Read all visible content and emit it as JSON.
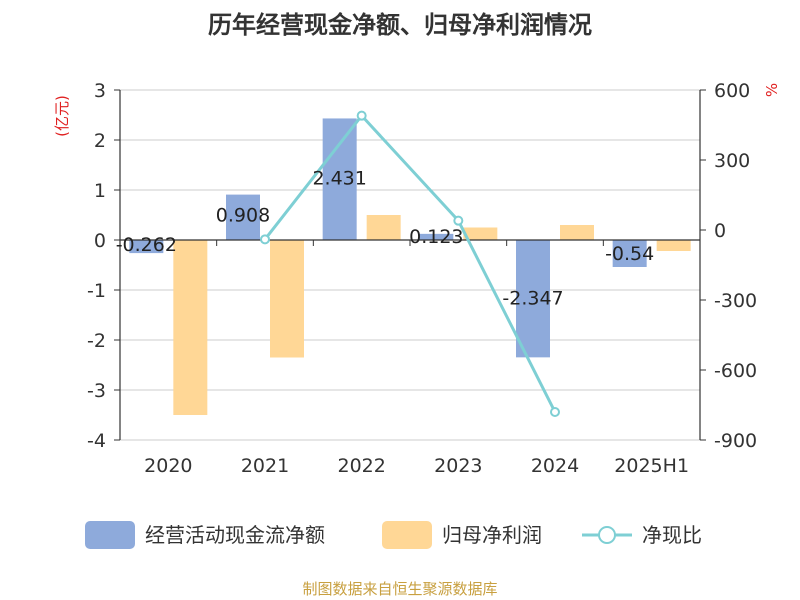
{
  "title": "历年经营现金净额、归母净利润情况",
  "left_unit": "(亿元)",
  "right_unit": "%",
  "source": "制图数据来自恒生聚源数据库",
  "legend": [
    {
      "label": "经营活动现金流净额",
      "color": "#8eaadb",
      "kind": "bar"
    },
    {
      "label": "归母净利润",
      "color": "#ffd796",
      "kind": "bar"
    },
    {
      "label": "净现比",
      "color": "#7ecfd4",
      "kind": "line"
    }
  ],
  "chart_data": {
    "type": "bar",
    "categories": [
      "2020",
      "2021",
      "2022",
      "2023",
      "2024",
      "2025H1"
    ],
    "left_axis": {
      "ylim": [
        -4,
        3
      ],
      "ticks": [
        3,
        2,
        1,
        0,
        -1,
        -2,
        -3,
        -4
      ]
    },
    "right_axis": {
      "ylim": [
        -900,
        600
      ],
      "ticks": [
        600,
        300,
        0,
        -300,
        -600,
        -900
      ]
    },
    "series": [
      {
        "name": "经营活动现金流净额",
        "axis": "left",
        "type": "bar",
        "color": "#8eaadb",
        "values": [
          -0.262,
          0.908,
          2.431,
          0.123,
          -2.347,
          -0.54
        ],
        "labels": [
          "-0.262",
          "0.908",
          "2.431",
          "0.123",
          "-2.347",
          "-0.54"
        ]
      },
      {
        "name": "归母净利润",
        "axis": "left",
        "type": "bar",
        "color": "#ffd796",
        "values": [
          -3.5,
          -2.35,
          0.5,
          0.25,
          0.3,
          -0.22
        ]
      },
      {
        "name": "净现比",
        "axis": "right",
        "type": "line",
        "color": "#7ecfd4",
        "values": [
          null,
          -40,
          490,
          40,
          -780,
          null
        ]
      }
    ],
    "grid": true
  }
}
